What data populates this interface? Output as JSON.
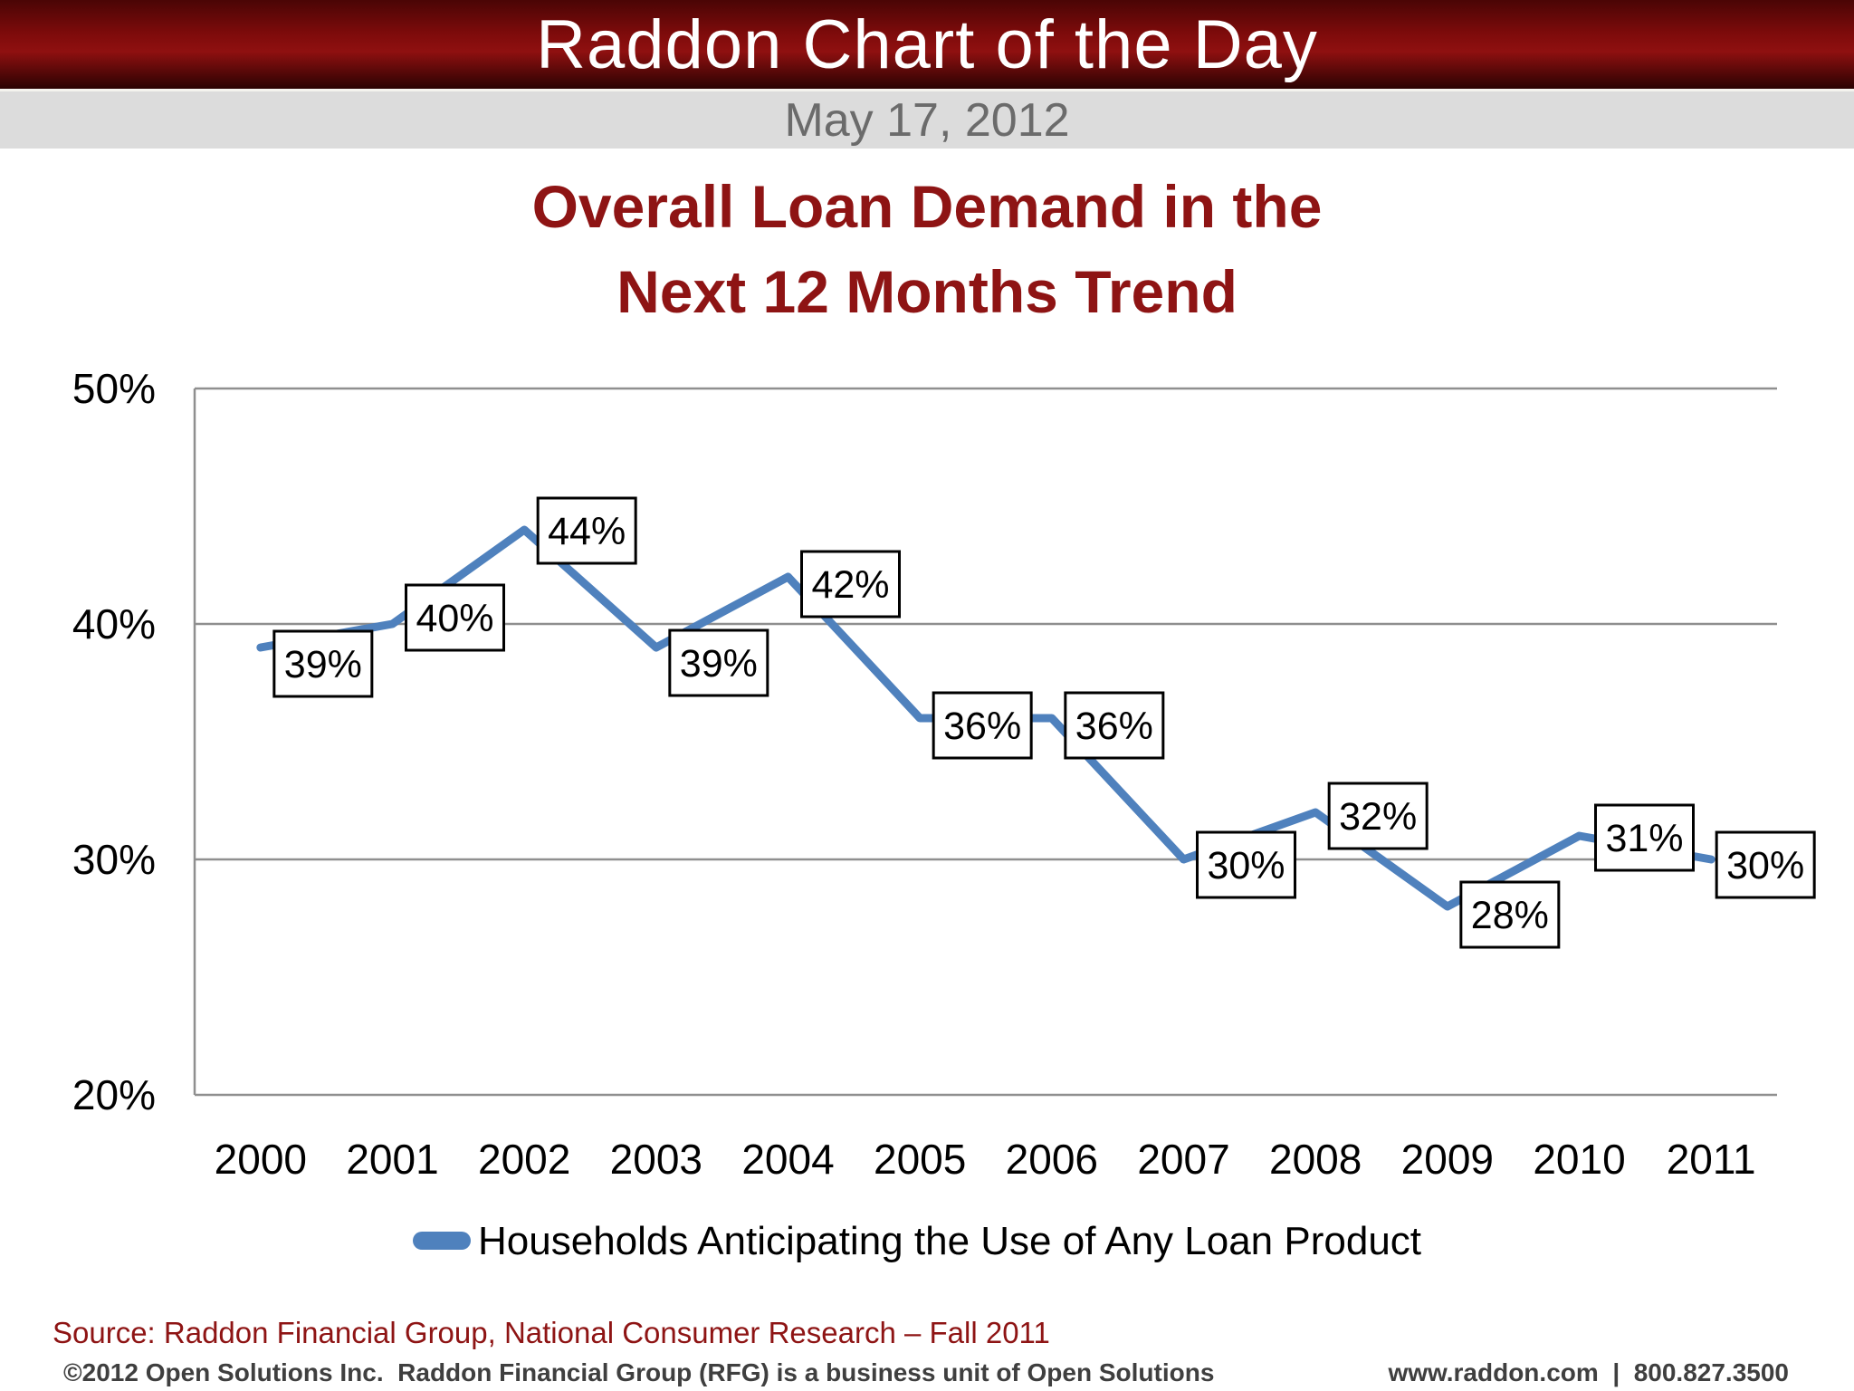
{
  "banner": {
    "title": "Raddon Chart of the Day",
    "date": "May 17, 2012"
  },
  "title": {
    "line1": "Overall Loan Demand in the",
    "line2": "Next 12 Months Trend"
  },
  "chart_data": {
    "type": "line",
    "title": "Overall Loan Demand in the Next 12 Months Trend",
    "categories": [
      "2000",
      "2001",
      "2002",
      "2003",
      "2004",
      "2005",
      "2006",
      "2007",
      "2008",
      "2009",
      "2010",
      "2011"
    ],
    "series": [
      {
        "name": "Households Anticipating the Use of Any Loan Product",
        "values": [
          39,
          40,
          44,
          39,
          42,
          36,
          36,
          30,
          32,
          28,
          31,
          30
        ],
        "labels": [
          "39%",
          "40%",
          "44%",
          "39%",
          "42%",
          "36%",
          "36%",
          "30%",
          "32%",
          "28%",
          "31%",
          "30%"
        ]
      }
    ],
    "xlabel": "",
    "ylabel": "",
    "ylim": [
      20,
      50
    ],
    "y_ticks": [
      {
        "value": 50,
        "label": "50%"
      },
      {
        "value": 40,
        "label": "40%"
      },
      {
        "value": 30,
        "label": "30%"
      },
      {
        "value": 20,
        "label": "20%"
      }
    ],
    "grid": true,
    "legend_position": "bottom",
    "line_color": "#4f81bd",
    "gridline_color": "#8f8f8f",
    "data_label_box": {
      "fill": "#ffffff",
      "border": "#000000"
    }
  },
  "legend": {
    "label": "Households Anticipating the Use of Any Loan Product",
    "marker_color": "#4f81bd"
  },
  "source": {
    "text": "Source: Raddon Financial Group, National Consumer Research – Fall 2011"
  },
  "footer": {
    "left": "©2012 Open Solutions Inc.  Raddon Financial Group (RFG) is a business unit of Open Solutions",
    "right": "www.raddon.com  |  800.827.3500"
  },
  "colors": {
    "accent_red": "#8e1414",
    "banner_red_bright": "#8f1010",
    "banner_red_dark": "#2a0202",
    "datebar_gray": "#dcdcdc",
    "date_text_gray": "#6b6b6b",
    "footer_gray": "#3f3f3f",
    "line_blue": "#4f81bd"
  }
}
